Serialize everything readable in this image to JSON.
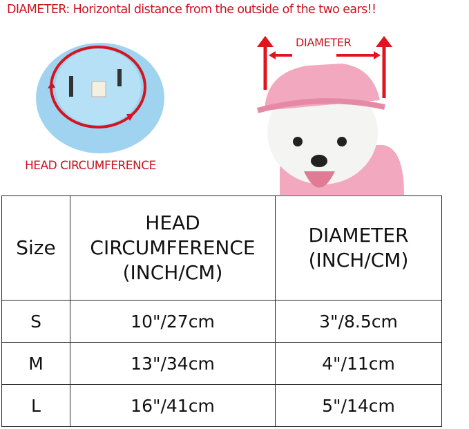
{
  "note": "DIAMETER: Horizontal distance from the outside of the two ears!!",
  "hat_label": "HEAD CIRCUMFERENCE",
  "dog_label": "DIAMETER",
  "colors": {
    "accent_red": "#c8141e",
    "hat_blue": "#9fd3ef",
    "hat_pink": "#f2a8bf"
  },
  "table": {
    "headers": [
      "Size",
      "HEAD CIRCUMFERENCE (INCH/CM)",
      "DIAMETER (INCH/CM)"
    ],
    "header_lines": {
      "head": [
        "HEAD",
        "CIRCUMFERENCE",
        "(INCH/CM)"
      ],
      "diameter": [
        "DIAMETER",
        "(INCH/CM)"
      ]
    },
    "rows": [
      {
        "size": "S",
        "head": "10\"/27cm",
        "diameter": "3\"/8.5cm"
      },
      {
        "size": "M",
        "head": "13\"/34cm",
        "diameter": "4\"/11cm"
      },
      {
        "size": "L",
        "head": "16\"/41cm",
        "diameter": "5\"/14cm"
      }
    ]
  }
}
